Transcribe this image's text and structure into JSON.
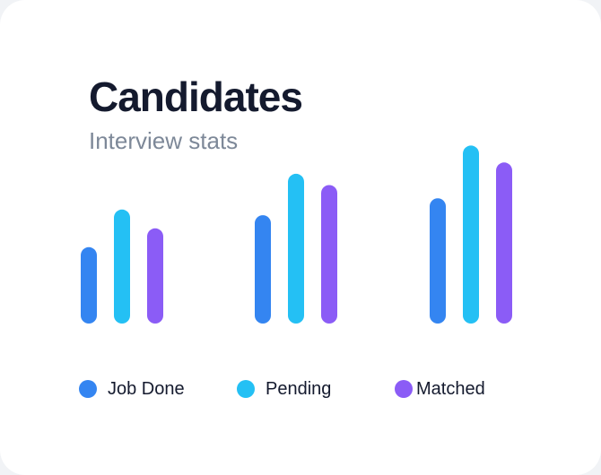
{
  "header": {
    "title": "Candidates",
    "subtitle": "Interview stats"
  },
  "colors": {
    "job_done": "#3485f1",
    "pending": "#24c0f4",
    "matched": "#8b5cf6"
  },
  "chart_data": {
    "type": "bar",
    "title": "Candidates",
    "subtitle": "Interview stats",
    "categories": [
      "",
      "",
      ""
    ],
    "series": [
      {
        "name": "Job Done",
        "color": "#3485f1",
        "values": [
          32,
          49,
          58
        ]
      },
      {
        "name": "Pending",
        "color": "#24c0f4",
        "values": [
          52,
          71,
          86
        ]
      },
      {
        "name": "Matched",
        "color": "#8b5cf6",
        "values": [
          42,
          65,
          77
        ]
      }
    ],
    "ylim": [
      0,
      100
    ],
    "grid": false,
    "legend_position": "bottom"
  }
}
